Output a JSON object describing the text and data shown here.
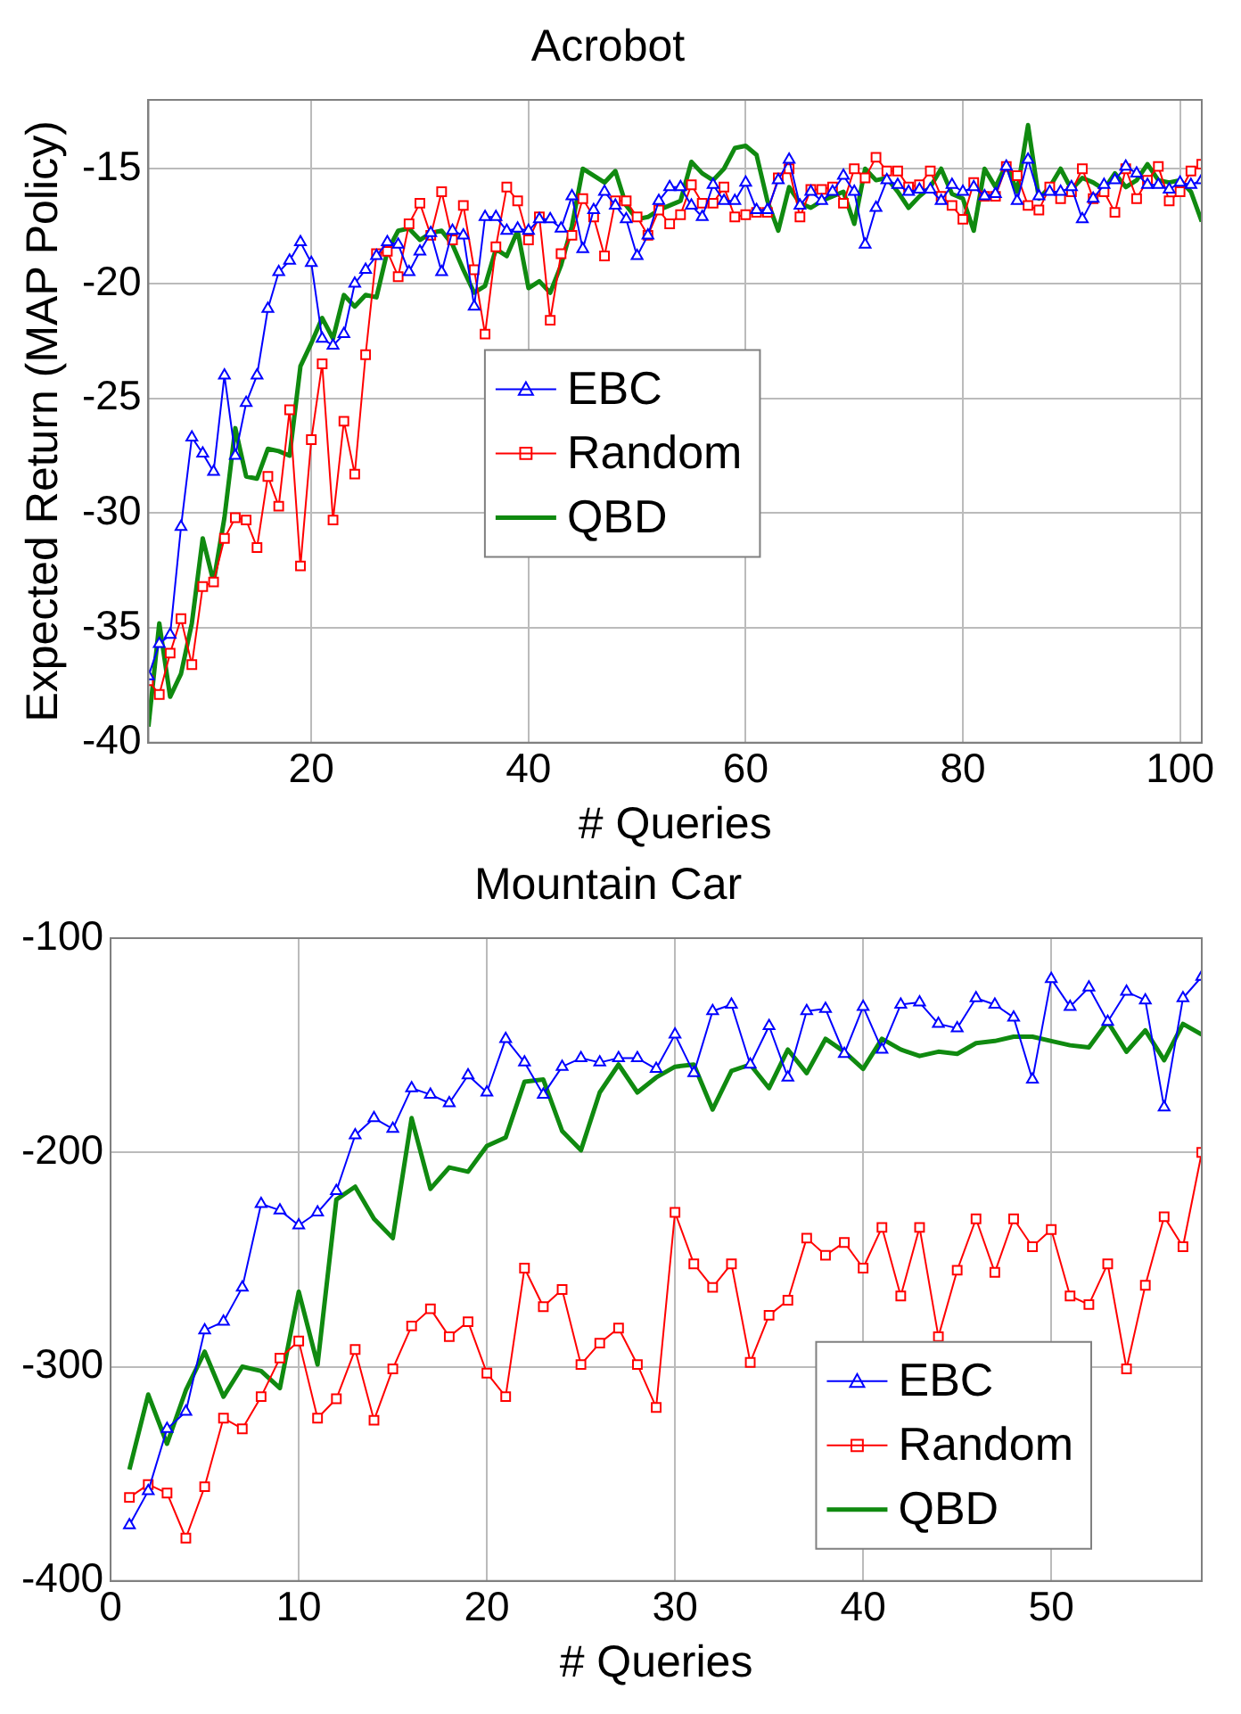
{
  "chart_data": [
    {
      "type": "line",
      "title": "Acrobot",
      "xlabel": "# Queries",
      "ylabel": "Expected Return (MAP Policy)",
      "x": [
        5,
        6,
        7,
        8,
        9,
        10,
        11,
        12,
        13,
        14,
        15,
        16,
        17,
        18,
        19,
        20,
        21,
        22,
        23,
        24,
        25,
        26,
        27,
        28,
        29,
        30,
        31,
        32,
        33,
        34,
        35,
        36,
        37,
        38,
        39,
        40,
        41,
        42,
        43,
        44,
        45,
        46,
        47,
        48,
        49,
        50,
        51,
        52,
        53,
        54,
        55,
        56,
        57,
        58,
        59,
        60,
        61,
        62,
        63,
        64,
        65,
        66,
        67,
        68,
        69,
        70,
        71,
        72,
        73,
        74,
        75,
        76,
        77,
        78,
        79,
        80,
        81,
        82,
        83,
        84,
        85,
        86,
        87,
        88,
        89,
        90,
        91,
        92,
        93,
        94,
        95,
        96,
        97,
        98,
        99,
        100,
        101,
        102
      ],
      "series": [
        {
          "name": "EBC",
          "color": "#0000ff",
          "marker": "triangle",
          "values": [
            -37.1,
            -35.7,
            -35.3,
            -30.6,
            -26.7,
            -27.4,
            -28.2,
            -24.0,
            -27.5,
            -25.2,
            -24.0,
            -21.1,
            -19.5,
            -19.0,
            -18.2,
            -19.1,
            -22.4,
            -22.7,
            -22.2,
            -20.0,
            -19.4,
            -18.8,
            -18.2,
            -18.3,
            -19.5,
            -18.6,
            -17.8,
            -19.5,
            -17.7,
            -17.9,
            -21.0,
            -17.1,
            -17.1,
            -17.7,
            -17.6,
            -17.7,
            -17.2,
            -17.2,
            -17.6,
            -16.2,
            -18.5,
            -16.8,
            -16.0,
            -16.6,
            -17.2,
            -18.8,
            -17.9,
            -16.4,
            -15.8,
            -15.8,
            -16.6,
            -17.1,
            -15.7,
            -16.4,
            -16.4,
            -15.6,
            -16.8,
            -16.8,
            -15.5,
            -14.6,
            -16.6,
            -16.0,
            -16.4,
            -16.0,
            -15.3,
            -16.0,
            -18.3,
            -16.7,
            -15.5,
            -15.7,
            -16.0,
            -15.9,
            -15.9,
            -16.4,
            -15.7,
            -16.0,
            -15.8,
            -16.2,
            -16.1,
            -14.9,
            -16.4,
            -14.6,
            -16.2,
            -16.0,
            -16.0,
            -15.8,
            -17.2,
            -16.3,
            -15.7,
            -15.5,
            -14.9,
            -15.2,
            -15.7,
            -15.7,
            -15.9,
            -15.6,
            -15.7,
            -15.5
          ]
        },
        {
          "name": "Random",
          "color": "#ff0000",
          "marker": "square",
          "values": [
            -37.3,
            -37.9,
            -36.1,
            -34.6,
            -36.6,
            -33.2,
            -33.0,
            -31.1,
            -30.2,
            -30.3,
            -31.5,
            -28.4,
            -29.7,
            -25.5,
            -32.3,
            -26.8,
            -23.5,
            -30.3,
            -26.0,
            -28.3,
            -23.1,
            -18.7,
            -18.6,
            -19.7,
            -17.4,
            -16.5,
            -17.9,
            -16.0,
            -18.1,
            -16.6,
            -19.4,
            -22.2,
            -18.4,
            -15.8,
            -16.4,
            -18.1,
            -17.1,
            -21.6,
            -18.7,
            -17.9,
            -16.3,
            -17.1,
            -18.8,
            -16.4,
            -16.4,
            -17.1,
            -17.9,
            -16.8,
            -17.4,
            -17.0,
            -15.7,
            -16.5,
            -16.5,
            -15.8,
            -17.1,
            -17.0,
            -16.9,
            -16.9,
            -15.4,
            -15.0,
            -17.1,
            -15.9,
            -15.9,
            -15.8,
            -16.5,
            -15.0,
            -15.4,
            -14.5,
            -15.1,
            -15.1,
            -15.8,
            -15.7,
            -15.1,
            -16.2,
            -16.6,
            -17.2,
            -15.6,
            -16.2,
            -16.2,
            -14.9,
            -15.3,
            -16.6,
            -16.8,
            -15.8,
            -16.3,
            -16.0,
            -15.0,
            -16.3,
            -16.0,
            -16.9,
            -15.0,
            -16.3,
            -15.5,
            -14.9,
            -16.4,
            -16.0,
            -15.1,
            -14.8
          ]
        },
        {
          "name": "QBD",
          "color": "#108a10",
          "marker": "none",
          "values": [
            -39.3,
            -34.8,
            -38.0,
            -37.0,
            -34.8,
            -31.1,
            -33.0,
            -30.2,
            -26.3,
            -28.4,
            -28.5,
            -27.2,
            -27.3,
            -27.5,
            -23.6,
            -22.6,
            -21.5,
            -22.4,
            -20.5,
            -21.0,
            -20.5,
            -20.6,
            -18.6,
            -17.7,
            -17.6,
            -18.1,
            -17.8,
            -17.7,
            -18.3,
            -19.4,
            -20.4,
            -20.1,
            -18.5,
            -18.8,
            -17.7,
            -20.2,
            -19.9,
            -20.4,
            -19.2,
            -17.5,
            -15.0,
            -15.3,
            -15.6,
            -15.1,
            -16.6,
            -17.2,
            -17.1,
            -16.8,
            -16.6,
            -16.4,
            -14.7,
            -15.2,
            -15.5,
            -15.0,
            -14.1,
            -14.0,
            -14.4,
            -16.4,
            -17.7,
            -15.8,
            -16.5,
            -16.7,
            -16.4,
            -16.2,
            -16.0,
            -17.4,
            -15.0,
            -15.5,
            -15.4,
            -16.0,
            -16.7,
            -16.2,
            -15.8,
            -15.0,
            -16.1,
            -16.3,
            -17.7,
            -15.0,
            -15.8,
            -14.8,
            -16.0,
            -13.1,
            -16.3,
            -15.8,
            -15.0,
            -15.9,
            -15.4,
            -15.6,
            -15.9,
            -15.2,
            -15.8,
            -15.5,
            -14.8,
            -15.5,
            -15.6,
            -15.5,
            -16.0,
            -17.3
          ]
        }
      ],
      "xlim": [
        5,
        102
      ],
      "xticks": [
        20,
        40,
        60,
        80,
        100
      ],
      "ylim": [
        -40,
        -12
      ],
      "yticks": [
        -40,
        -35,
        -30,
        -25,
        -20,
        -15
      ],
      "grid": true,
      "legend": "center"
    },
    {
      "type": "line",
      "title": "Mountain Car",
      "xlabel": "# Queries",
      "x": [
        1,
        2,
        3,
        4,
        5,
        6,
        7,
        8,
        9,
        10,
        11,
        12,
        13,
        14,
        15,
        16,
        17,
        18,
        19,
        20,
        21,
        22,
        23,
        24,
        25,
        26,
        27,
        28,
        29,
        30,
        31,
        32,
        33,
        34,
        35,
        36,
        37,
        38,
        39,
        40,
        41,
        42,
        43,
        44,
        45,
        46,
        47,
        48,
        49,
        50,
        51,
        52,
        53,
        54,
        55,
        56,
        57,
        58
      ],
      "series": [
        {
          "name": "EBC",
          "color": "#0000ff",
          "marker": "triangle",
          "values": [
            -374,
            -358,
            -329,
            -321,
            -283,
            -279,
            -263,
            -224,
            -227,
            -234,
            -228,
            -218,
            -192,
            -184,
            -189,
            -170,
            -173,
            -177,
            -164,
            -172,
            -147,
            -158,
            -173,
            -160,
            -156,
            -158,
            -156,
            -156,
            -161,
            -145,
            -163,
            -134,
            -131,
            -159,
            -141,
            -165,
            -134,
            -133,
            -154,
            -132,
            -152,
            -131,
            -130,
            -140,
            -142,
            -128,
            -131,
            -137,
            -166,
            -119,
            -132,
            -123,
            -139,
            -125,
            -129,
            -179,
            -128,
            -118
          ]
        },
        {
          "name": "Random",
          "color": "#ff0000",
          "marker": "square",
          "values": [
            -361,
            -355,
            -359,
            -380,
            -356,
            -324,
            -329,
            -314,
            -296,
            -288,
            -324,
            -315,
            -292,
            -325,
            -301,
            -281,
            -273,
            -286,
            -279,
            -303,
            -314,
            -254,
            -272,
            -264,
            -299,
            -289,
            -282,
            -299,
            -319,
            -228,
            -252,
            -263,
            -252,
            -298,
            -276,
            -269,
            -240,
            -248,
            -242,
            -254,
            -235,
            -267,
            -235,
            -286,
            -255,
            -231,
            -256,
            -231,
            -244,
            -236,
            -267,
            -271,
            -252,
            -301,
            -262,
            -230,
            -244,
            -200
          ]
        },
        {
          "name": "QBD",
          "color": "#108a10",
          "marker": "none",
          "values": [
            -348,
            -313,
            -336,
            -311,
            -293,
            -314,
            -300,
            -302,
            -310,
            -265,
            -299,
            -222,
            -216,
            -231,
            -240,
            -184,
            -217,
            -207,
            -209,
            -197,
            -193,
            -167,
            -166,
            -190,
            -199,
            -172,
            -159,
            -172,
            -165,
            -160,
            -159,
            -180,
            -162,
            -159,
            -170,
            -152,
            -163,
            -147,
            -153,
            -161,
            -147,
            -152,
            -155,
            -153,
            -154,
            -149,
            -148,
            -146,
            -146,
            -148,
            -150,
            -151,
            -139,
            -153,
            -143,
            -157,
            -140,
            -145
          ]
        }
      ],
      "xlim": [
        0,
        58
      ],
      "xticks": [
        0,
        10,
        20,
        30,
        40,
        50
      ],
      "ylim": [
        -400,
        -100
      ],
      "yticks": [
        -400,
        -300,
        -200,
        -100
      ],
      "grid": true,
      "legend": "bottom right"
    }
  ]
}
